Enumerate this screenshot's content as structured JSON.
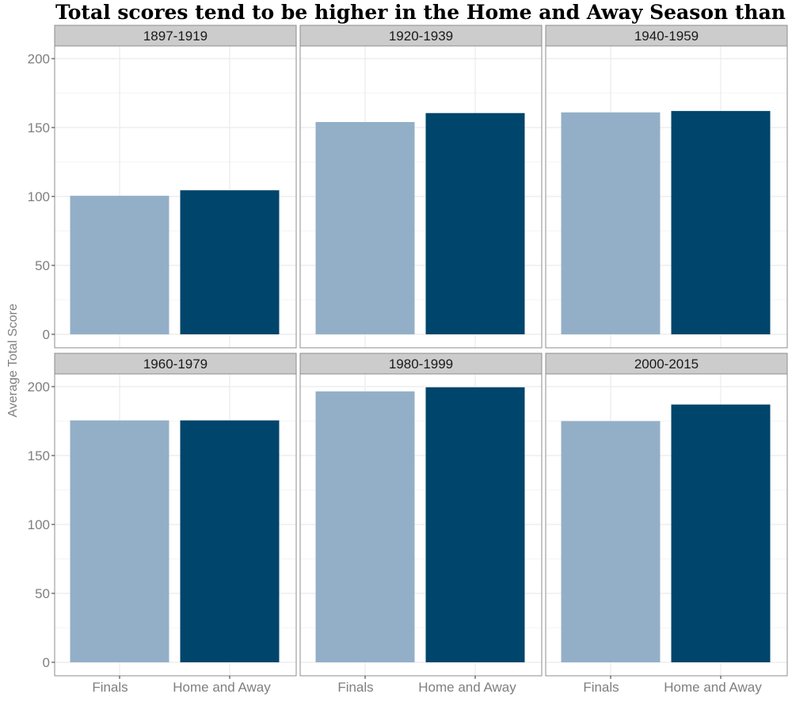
{
  "chart_data": {
    "type": "bar",
    "title": "Total scores tend to be higher in the Home and Away Season than in Finals",
    "xlabel": "",
    "ylabel": "Average Total Score",
    "ylim": [
      0,
      200
    ],
    "yticks": [
      0,
      50,
      100,
      150,
      200
    ],
    "grid": true,
    "legend": "none",
    "categories": [
      "Finals",
      "Home and Away"
    ],
    "category_colors": [
      "#93afc7",
      "#00456b"
    ],
    "facets": [
      {
        "name": "1897-1919",
        "values": [
          100.5,
          104.5
        ]
      },
      {
        "name": "1920-1939",
        "values": [
          154,
          160.5
        ]
      },
      {
        "name": "1940-1959",
        "values": [
          161,
          162
        ]
      },
      {
        "name": "1960-1979",
        "values": [
          175.5,
          175.5
        ]
      },
      {
        "name": "1980-1999",
        "values": [
          196.5,
          199.5
        ]
      },
      {
        "name": "2000-2015",
        "values": [
          175,
          187
        ]
      }
    ]
  },
  "colors": {
    "strip_bg": "#cccccc",
    "panel_border": "#8c8c8c",
    "grid": "#ebebeb",
    "text_muted": "#7f7f7f"
  }
}
